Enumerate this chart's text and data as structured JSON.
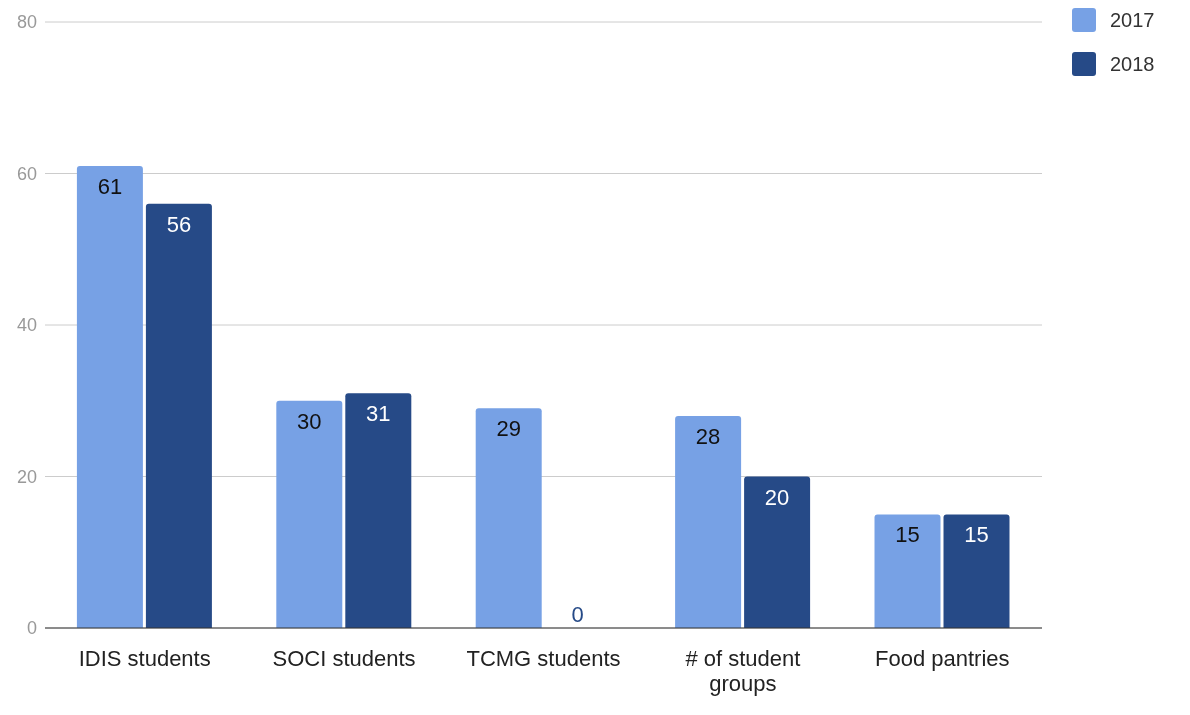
{
  "chart_data": {
    "type": "bar",
    "categories": [
      "IDIS students",
      "SOCI students",
      "TCMG students",
      "# of student groups",
      "Food pantries"
    ],
    "series": [
      {
        "name": "2017",
        "color": "#77a1e5",
        "values": [
          61,
          30,
          29,
          28,
          15
        ]
      },
      {
        "name": "2018",
        "color": "#264a87",
        "values": [
          56,
          31,
          0,
          20,
          15
        ]
      }
    ],
    "ylim": [
      0,
      80
    ],
    "yticks": [
      0,
      20,
      40,
      60,
      80
    ],
    "grid": "y",
    "legend": "top right",
    "data_labels": true
  }
}
